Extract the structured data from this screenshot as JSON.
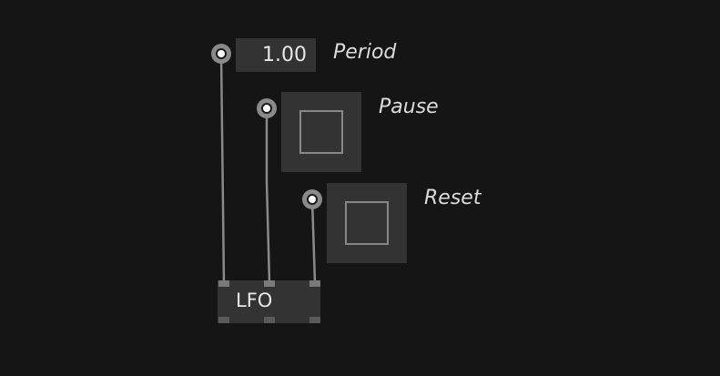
{
  "patch": {
    "period_control": {
      "value": "1.00",
      "label": "Period"
    },
    "pause_control": {
      "label": "Pause"
    },
    "reset_control": {
      "label": "Reset"
    },
    "lfo_node": {
      "title": "LFO",
      "inlet_count": 3,
      "outlet_count": 3
    }
  },
  "colors": {
    "background": "#151515",
    "node_fill": "#333333",
    "wire": "#8a8a8a",
    "port_ring": "#8a8a8a",
    "port_center": "#ffffff",
    "label_text": "#dcdcdc"
  }
}
